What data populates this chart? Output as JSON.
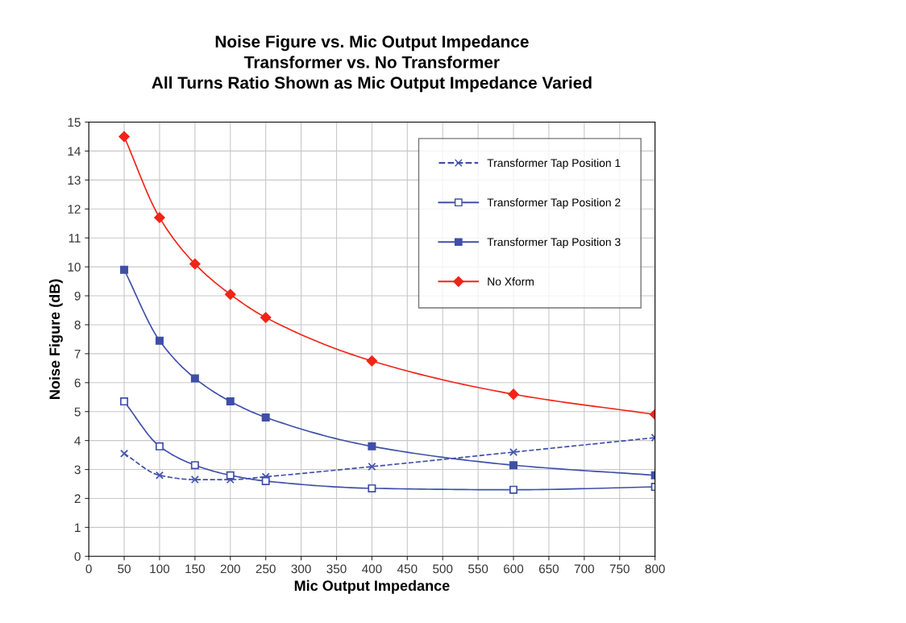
{
  "chart_data": {
    "type": "line",
    "title": "Noise Figure vs. Mic Output Impedance\nTransformer vs. No Transformer\nAll Turns Ratio Shown as Mic Output Impedance Varied",
    "xlabel": "Mic Output Impedance",
    "ylabel": "Noise Figure (dB)",
    "x": [
      50,
      100,
      150,
      200,
      250,
      400,
      600,
      800
    ],
    "series": [
      {
        "name": "Transformer Tap Position 1",
        "color": "#3f4fa8",
        "marker": "cross",
        "line_style": "dashed",
        "values": [
          3.55,
          2.8,
          2.65,
          2.65,
          2.75,
          3.1,
          3.6,
          4.1
        ]
      },
      {
        "name": "Transformer Tap Position 2",
        "color": "#3f4fa8",
        "marker": "square",
        "line_style": "solid",
        "values": [
          5.35,
          3.8,
          3.15,
          2.8,
          2.6,
          2.35,
          2.3,
          2.4
        ]
      },
      {
        "name": "Transformer Tap Position 3",
        "color": "#3f4fa8",
        "marker": "square",
        "line_style": "solid",
        "values": [
          9.9,
          7.45,
          6.15,
          5.35,
          4.8,
          3.8,
          3.15,
          2.8
        ]
      },
      {
        "name": "No Xform",
        "color": "#f02418",
        "marker": "diamond",
        "line_style": "solid",
        "values": [
          14.5,
          11.7,
          10.1,
          9.05,
          8.25,
          6.75,
          5.6,
          4.9
        ]
      }
    ],
    "xlim": [
      0,
      800
    ],
    "xticks": [
      0,
      50,
      100,
      150,
      200,
      250,
      300,
      350,
      400,
      450,
      500,
      550,
      600,
      650,
      700,
      750,
      800
    ],
    "ylim": [
      0,
      15
    ],
    "yticks": [
      0,
      1,
      2,
      3,
      4,
      5,
      6,
      7,
      8,
      9,
      10,
      11,
      12,
      13,
      14,
      15
    ],
    "grid": true,
    "legend": "top right"
  }
}
